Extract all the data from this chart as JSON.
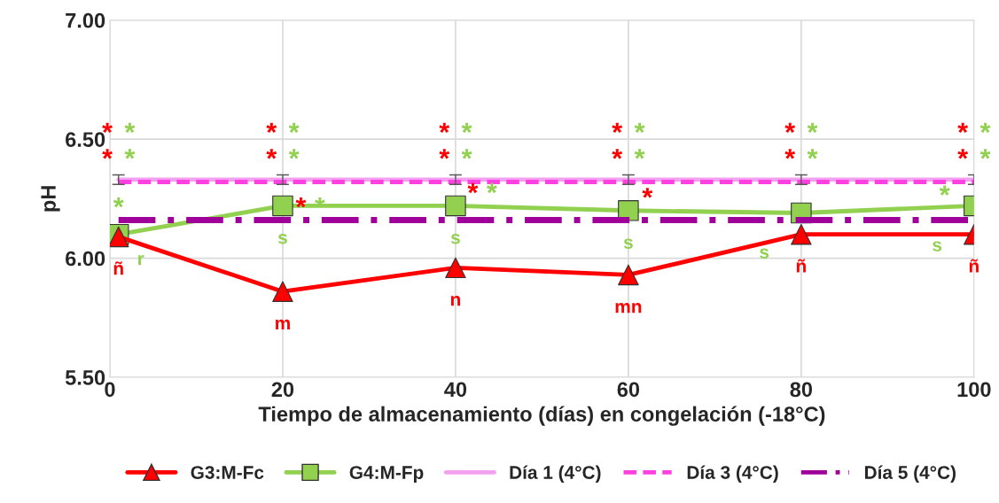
{
  "chart_data": {
    "type": "line",
    "xlabel": "Tiempo de almacenamiento (días) en congelación (-18°C)",
    "ylabel": "pH",
    "x": [
      1,
      20,
      40,
      60,
      80,
      100
    ],
    "xlim": [
      0,
      100
    ],
    "xticks": [
      0,
      20,
      40,
      60,
      80,
      100
    ],
    "ylim": [
      5.5,
      7.0
    ],
    "yticks": [
      {
        "value": 5.5,
        "label": "5.50"
      },
      {
        "value": 6.0,
        "label": "6.00"
      },
      {
        "value": 6.5,
        "label": "6.50"
      },
      {
        "value": 7.0,
        "label": "7.00"
      }
    ],
    "grid": true,
    "legend": "bottom",
    "series": [
      {
        "name": "G3:M-Fc",
        "color": "#ff0000",
        "marker": "triangle",
        "values": [
          6.09,
          5.86,
          5.96,
          5.93,
          6.1,
          6.1
        ],
        "value_labels": [
          "ñ",
          "m",
          "n",
          "mn",
          "ñ",
          "ñ"
        ]
      },
      {
        "name": "G4:M-Fp",
        "color": "#92d050",
        "marker": "square",
        "values": [
          6.1,
          6.22,
          6.22,
          6.2,
          6.19,
          6.22
        ],
        "value_labels": [
          "r",
          "s",
          "s",
          "s",
          "s",
          "s"
        ]
      },
      {
        "name": "Día 1 (4°C)",
        "color": "#f4a0f0",
        "line_style": "solid",
        "values": [
          6.33,
          6.33,
          6.33,
          6.33,
          6.33,
          6.33
        ],
        "errors": [
          0.02,
          0.02,
          0.02,
          0.02,
          0.02,
          0.02
        ]
      },
      {
        "name": "Día 3 (4°C)",
        "color": "#ff40e0",
        "line_style": "dashed",
        "values": [
          6.32,
          6.32,
          6.32,
          6.32,
          6.32,
          6.32
        ]
      },
      {
        "name": "Día 5 (4°C)",
        "color": "#a0009a",
        "line_style": "dashdot",
        "values": [
          6.16,
          6.16,
          6.16,
          6.16,
          6.16,
          6.16
        ]
      }
    ],
    "annotations": [
      "*",
      "*",
      "*",
      "*",
      "*",
      "*",
      "*",
      "*",
      "*",
      "*",
      "*",
      "*",
      "*",
      "*",
      "*",
      "*",
      "*",
      "*",
      "*",
      "*",
      "*",
      "*",
      "*",
      "*",
      {
        "text": "*",
        "x": 24.3,
        "y": 6.16
      },
      {
        "text": "*",
        "x": 22.1,
        "y": 6.16
      },
      {
        "text": "*",
        "x": 44.2,
        "y": 6.22
      },
      {
        "text": "*",
        "x": 42.0,
        "y": 6.22
      },
      {
        "text": "*",
        "x": 1,
        "y": 6.16
      },
      {
        "text": "*",
        "x": 62.2,
        "y": 6.2
      },
      {
        "text": "*",
        "x": 96.6,
        "y": 6.21
      }
    ]
  }
}
